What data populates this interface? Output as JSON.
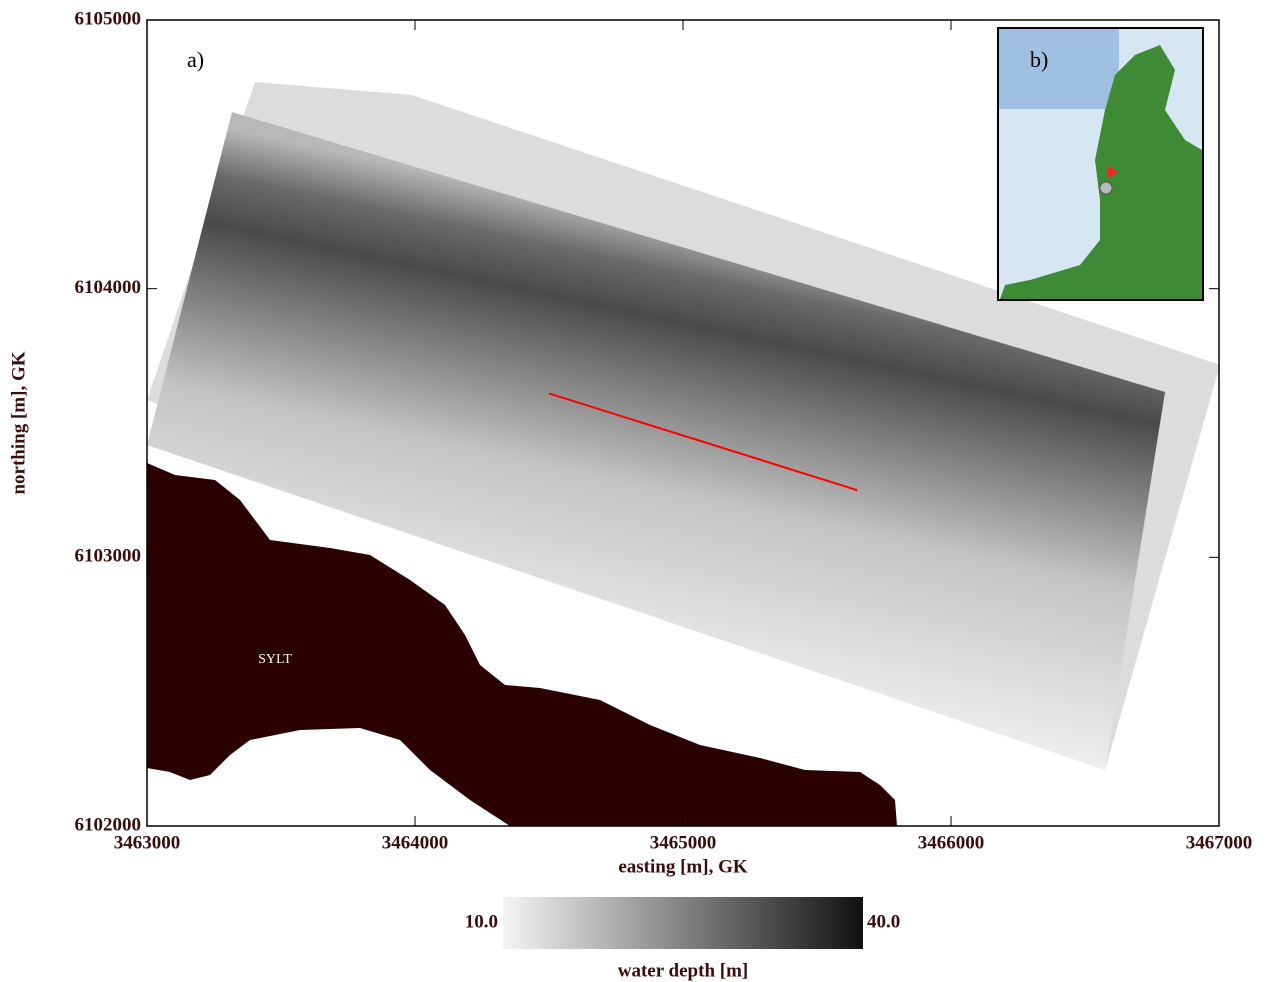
{
  "chart_data": {
    "type": "map",
    "panel_labels": [
      "a)",
      "b)"
    ],
    "place_label": "SYLT",
    "x_label": "easting [m], GK",
    "y_label": "northing [m], GK",
    "xlim": [
      3463000,
      3467000
    ],
    "ylim": [
      6102000,
      6105000
    ],
    "xticks": [
      3463000,
      3464000,
      3465000,
      3466000,
      3467000
    ],
    "yticks": [
      6102000,
      6103000,
      6104000,
      6105000
    ],
    "transect": {
      "x": [
        3464500,
        3465650
      ],
      "y": [
        6103610,
        6103250
      ],
      "color": "#ff0000"
    },
    "colorbar": {
      "label": "water depth [m]",
      "ticks": [
        {
          "value": 10,
          "label": "10.0"
        },
        {
          "value": 40,
          "label": "40.0"
        }
      ]
    }
  }
}
